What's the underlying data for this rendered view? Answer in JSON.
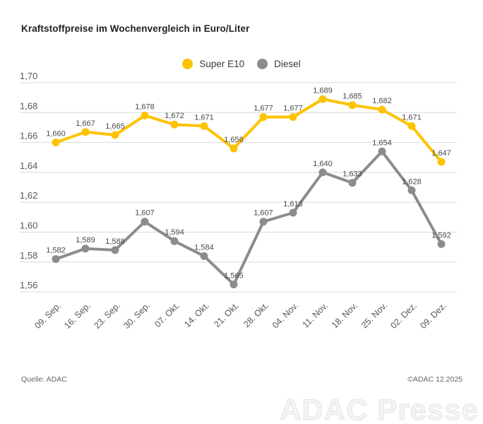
{
  "chart_data": {
    "type": "line",
    "title": "Kraftstoffpreise im Wochenvergleich in Euro/Liter",
    "categories": [
      "09. Sep.",
      "16. Sep.",
      "23. Sep.",
      "30. Sep.",
      "07. Okt.",
      "14. Okt.",
      "21. Okt.",
      "28. Okt.",
      "04. Nov.",
      "11. Nov.",
      "18. Nov.",
      "25. Nov.",
      "02. Dez.",
      "09. Dez."
    ],
    "series": [
      {
        "name": "Super E10",
        "color": "#FDC300",
        "values": [
          1.66,
          1.667,
          1.665,
          1.678,
          1.672,
          1.671,
          1.656,
          1.677,
          1.677,
          1.689,
          1.685,
          1.682,
          1.671,
          1.647
        ],
        "point_labels": [
          "1,660",
          "1,667",
          "1,665",
          "1,678",
          "1,672",
          "1,671",
          "1,656",
          "1,677",
          "1,677",
          "1,689",
          "1,685",
          "1,682",
          "1,671",
          "1,647"
        ]
      },
      {
        "name": "Diesel",
        "color": "#8C8C8C",
        "values": [
          1.582,
          1.589,
          1.588,
          1.607,
          1.594,
          1.584,
          1.565,
          1.607,
          1.613,
          1.64,
          1.633,
          1.654,
          1.628,
          1.592
        ],
        "point_labels": [
          "1,582",
          "1,589",
          "1,588",
          "1,607",
          "1,594",
          "1,584",
          "1,565",
          "1,607",
          "1,613",
          "1,640",
          "1,633",
          "1,654",
          "1,628",
          "1,592"
        ]
      }
    ],
    "y_axis": {
      "min": 1.56,
      "max": 1.7,
      "tick_step": 0.02,
      "tick_values": [
        1.7,
        1.68,
        1.66,
        1.64,
        1.62,
        1.6,
        1.58,
        1.56
      ],
      "tick_labels": [
        "1,70",
        "1,68",
        "1,66",
        "1,64",
        "1,62",
        "1,60",
        "1,58",
        "1,56"
      ]
    },
    "grid": true,
    "legend_position": "top-center",
    "colors": {
      "grid": "#D9D9D9",
      "axis_tick_text": "#575757",
      "point_label_text": "#4A4A4A"
    }
  },
  "footer": {
    "source": "Quelle: ADAC",
    "copyright": "©ADAC 12.2025"
  },
  "watermark": "ADAC Presse"
}
